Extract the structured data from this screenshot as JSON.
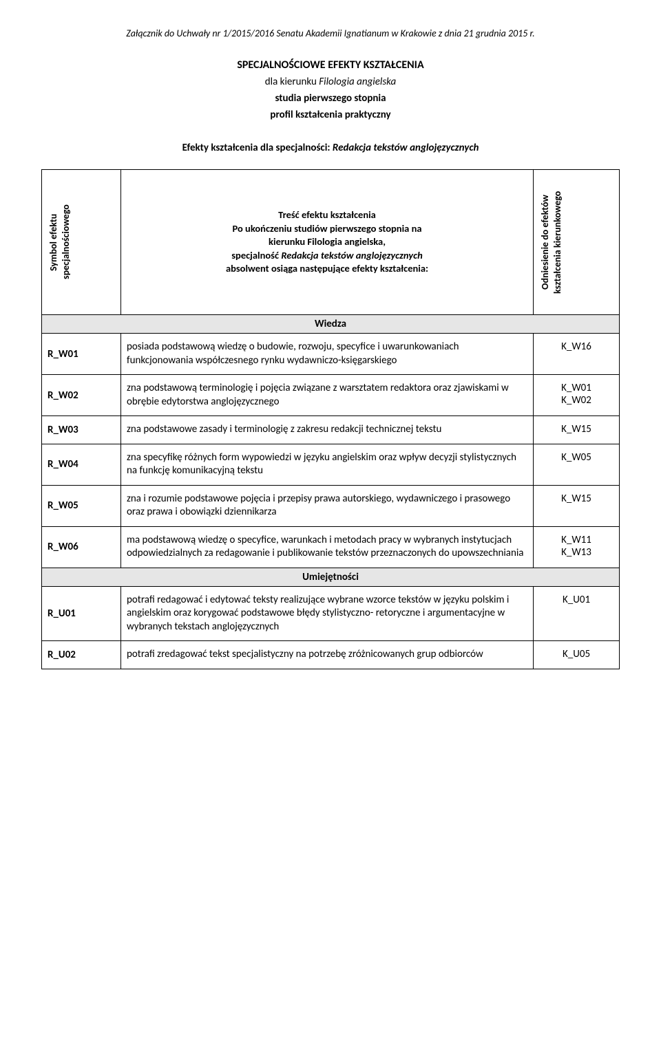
{
  "header_note": "Załącznik do Uchwały nr 1/2015/2016 Senatu Akademii Ignatianum w Krakowie z dnia 21 grudnia 2015 r.",
  "title": "SPECJALNOŚCIOWE EFEKTY KSZTAŁCENIA",
  "subtitle_for_prefix": "dla kierunku ",
  "subtitle_for_italic": "Filologia angielska",
  "subtitle_level": "studia pierwszego stopnia",
  "subtitle_profile": "profil kształcenia praktyczny",
  "effects_label_prefix": "Efekty kształcenia dla specjalności: ",
  "effects_label_italic": "Redakcja tekstów anglojęzycznych",
  "col_headers": {
    "symbol": "Symbol efektu\nspecjalnościowego",
    "desc_line1": "Treść efektu kształcenia",
    "desc_line2": "Po ukończeniu studiów pierwszego stopnia na",
    "desc_line3": "kierunku Filologia angielska,",
    "desc_line4_prefix": "specjalność ",
    "desc_line4_italic": "Redakcja tekstów anglojęzycznych",
    "desc_line5": "absolwent osiąga następujące efekty kształcenia:",
    "ref": "Odniesienie do efektów\nkształcenia kierunkowego"
  },
  "sections": {
    "wiedza": "Wiedza",
    "umiejetnosci": "Umiejętności"
  },
  "rows": {
    "w01": {
      "sym": "R_W01",
      "desc": "posiada podstawową wiedzę o budowie, rozwoju, specyfice i uwarunkowaniach funkcjonowania współczesnego rynku wydawniczo-księgarskiego",
      "ref": "K_W16"
    },
    "w02": {
      "sym": "R_W02",
      "desc": "zna podstawową terminologię i pojęcia związane z warsztatem redaktora oraz zjawiskami w obrębie edytorstwa anglojęzycznego",
      "ref": "K_W01\nK_W02"
    },
    "w03": {
      "sym": "R_W03",
      "desc": "zna podstawowe zasady i terminologię z zakresu redakcji technicznej tekstu",
      "ref": "K_W15"
    },
    "w04": {
      "sym": "R_W04",
      "desc": "zna specyfikę różnych form wypowiedzi w języku angielskim oraz wpływ decyzji stylistycznych na funkcję komunikacyjną tekstu",
      "ref": "K_W05"
    },
    "w05": {
      "sym": "R_W05",
      "desc": "zna i rozumie podstawowe pojęcia i przepisy prawa autorskiego, wydawniczego i prasowego oraz prawa i obowiązki dziennikarza",
      "ref": "K_W15"
    },
    "w06": {
      "sym": "R_W06",
      "desc": "ma podstawową wiedzę o specyfice, warunkach i metodach pracy w wybranych instytucjach odpowiedzialnych za redagowanie i publikowanie tekstów przeznaczonych do upowszechniania",
      "ref": "K_W11\nK_W13"
    },
    "u01": {
      "sym": "R_U01",
      "desc": "potrafi redagować i edytować teksty realizujące wybrane wzorce tekstów w języku polskim i angielskim oraz korygować podstawowe błędy stylistyczno- retoryczne i argumentacyjne w wybranych tekstach anglojęzycznych",
      "ref": "K_U01"
    },
    "u02": {
      "sym": "R_U02",
      "desc": "potrafi zredagować tekst specjalistyczny na potrzebę zróżnicowanych grup odbiorców",
      "ref": "K_U05"
    }
  }
}
